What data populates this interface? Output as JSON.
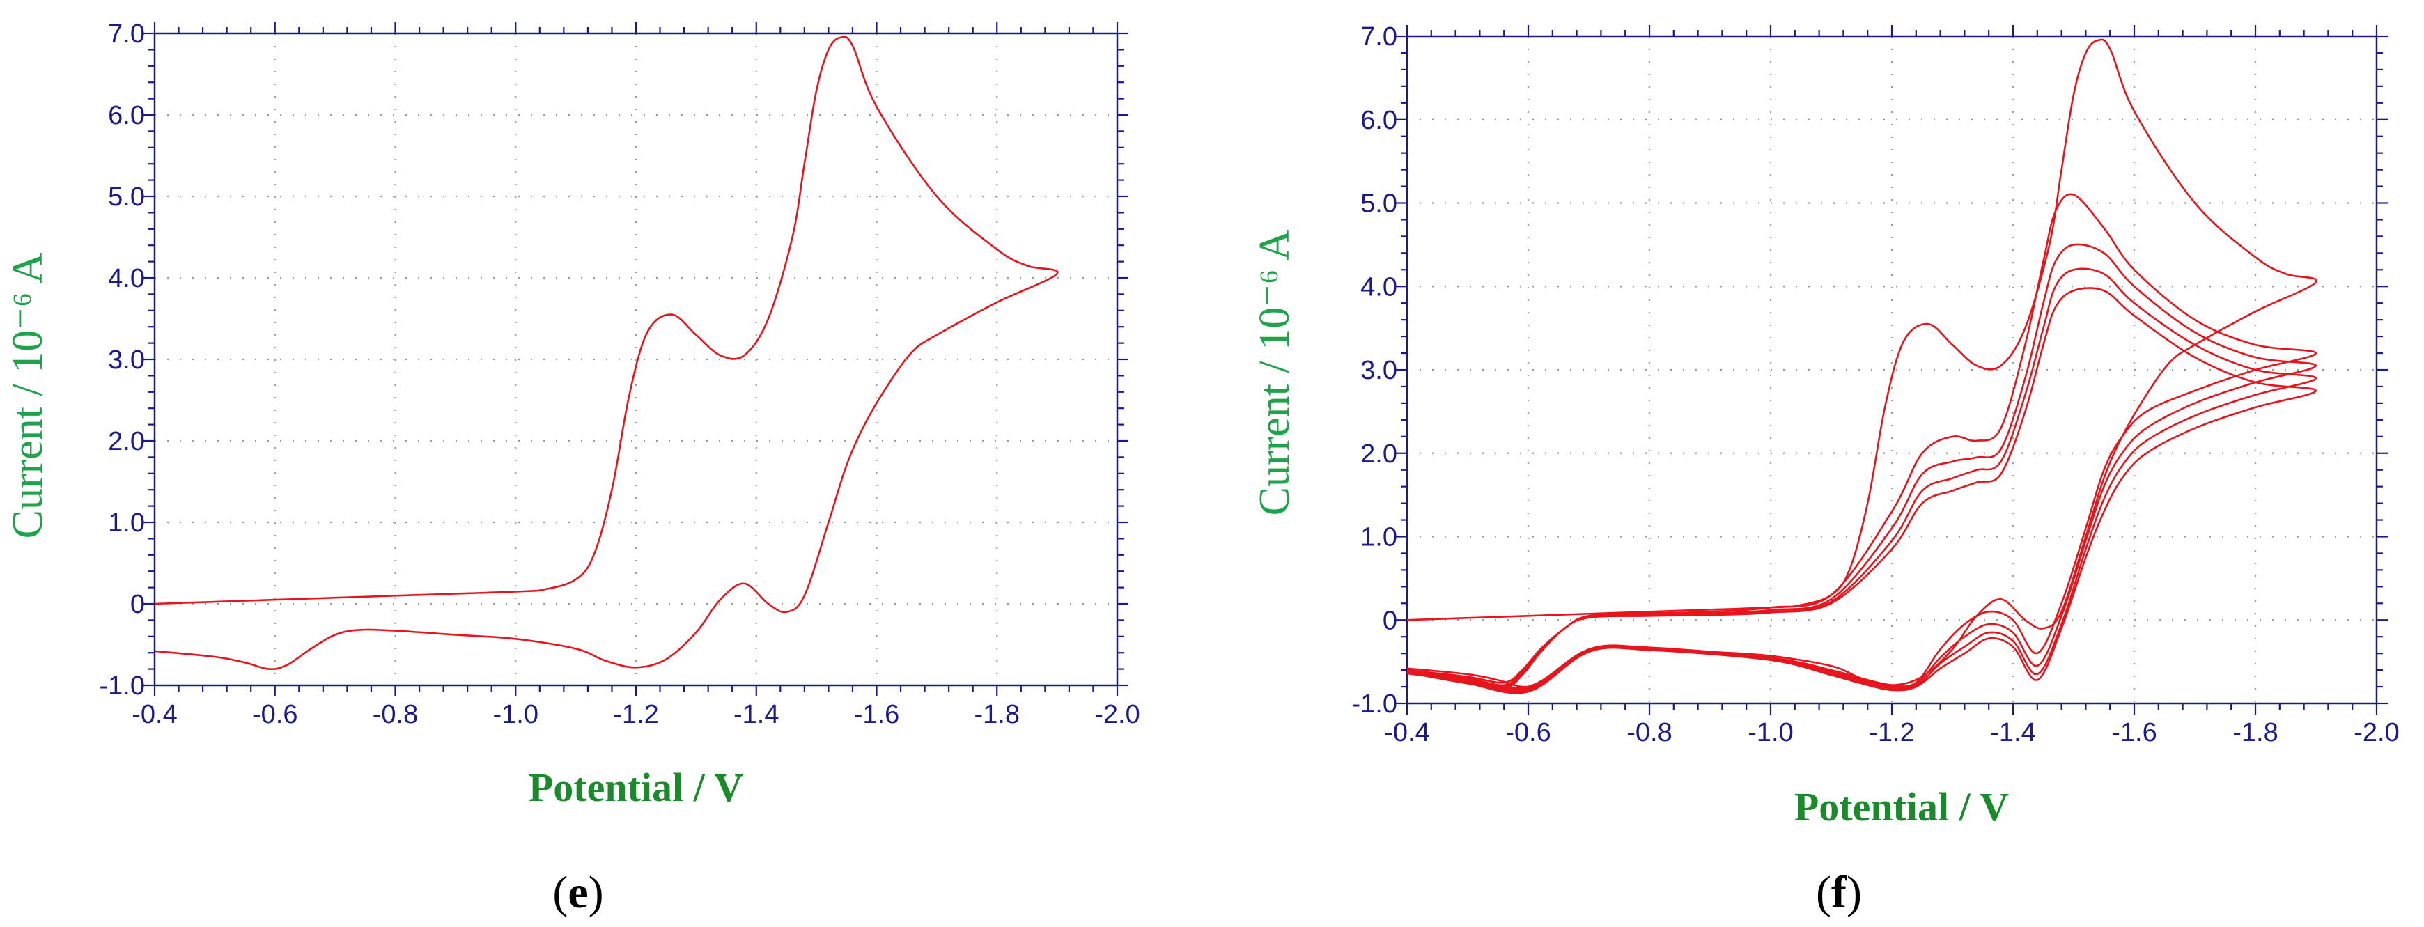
{
  "colors": {
    "axis": "#1a1a8c",
    "grid": "#9a9a9a",
    "curve": "#e8141c",
    "ylabel": "#1fa34a",
    "xlabel": "#1a8a2a",
    "panel_label": "#000000"
  },
  "chart_data": [
    {
      "type": "line",
      "panel_label": "(e)",
      "panel_letter": "e",
      "xlabel": "Potential / V",
      "ylabel": "Current / 10⁻⁶ A",
      "xlim": [
        -0.4,
        -2.0
      ],
      "ylim": [
        -1.0,
        7.0
      ],
      "x_reversed": true,
      "x_ticks": [
        "-0.4",
        "-0.6",
        "-0.8",
        "-1.0",
        "-1.2",
        "-1.4",
        "-1.6",
        "-1.8",
        "-2.0"
      ],
      "y_ticks": [
        "-1.0",
        "0",
        "1.0",
        "2.0",
        "3.0",
        "4.0",
        "5.0",
        "6.0",
        "7.0"
      ],
      "grid": true,
      "series": [
        {
          "x": [
            -0.4,
            -0.6,
            -0.8,
            -1.0,
            -1.05,
            -1.1,
            -1.13,
            -1.16,
            -1.19,
            -1.22,
            -1.26,
            -1.3,
            -1.34,
            -1.38,
            -1.42,
            -1.46,
            -1.48,
            -1.5,
            -1.52,
            -1.54,
            -1.56,
            -1.6,
            -1.7,
            -1.8,
            -1.85,
            -1.9,
            -1.8,
            -1.7,
            -1.66,
            -1.62,
            -1.58,
            -1.55,
            -1.52,
            -1.48,
            -1.45,
            -1.42,
            -1.38,
            -1.34,
            -1.3,
            -1.25,
            -1.2,
            -1.15,
            -1.1,
            -1.0,
            -0.9,
            -0.8,
            -0.74,
            -0.7,
            -0.66,
            -0.62,
            -0.59,
            -0.55,
            -0.5,
            -0.4
          ],
          "y": [
            0.0,
            0.05,
            0.1,
            0.15,
            0.18,
            0.3,
            0.6,
            1.4,
            2.6,
            3.35,
            3.55,
            3.3,
            3.05,
            3.05,
            3.5,
            4.5,
            5.4,
            6.3,
            6.8,
            6.95,
            6.85,
            6.1,
            5.0,
            4.35,
            4.15,
            4.05,
            3.7,
            3.3,
            3.1,
            2.7,
            2.2,
            1.7,
            1.0,
            0.1,
            -0.1,
            0.0,
            0.25,
            0.05,
            -0.35,
            -0.68,
            -0.78,
            -0.7,
            -0.55,
            -0.43,
            -0.38,
            -0.33,
            -0.32,
            -0.38,
            -0.55,
            -0.75,
            -0.8,
            -0.72,
            -0.65,
            -0.58
          ]
        }
      ]
    },
    {
      "type": "line",
      "panel_label": "(f)",
      "panel_letter": "f",
      "xlabel": "Potential / V",
      "ylabel": "Current / 10⁻⁶ A",
      "xlim": [
        -0.4,
        -2.0
      ],
      "ylim": [
        -1.0,
        7.0
      ],
      "x_reversed": true,
      "x_ticks": [
        "-0.4",
        "-0.6",
        "-0.8",
        "-1.0",
        "-1.2",
        "-1.4",
        "-1.6",
        "-1.8",
        "-2.0"
      ],
      "y_ticks": [
        "-1.0",
        "0",
        "1.0",
        "2.0",
        "3.0",
        "4.0",
        "5.0",
        "6.0",
        "7.0"
      ],
      "grid": true,
      "series": [
        {
          "x": [
            -0.4,
            -0.6,
            -0.8,
            -1.0,
            -1.05,
            -1.1,
            -1.13,
            -1.16,
            -1.19,
            -1.22,
            -1.26,
            -1.3,
            -1.34,
            -1.38,
            -1.42,
            -1.46,
            -1.48,
            -1.5,
            -1.52,
            -1.54,
            -1.56,
            -1.6,
            -1.7,
            -1.8,
            -1.85,
            -1.9,
            -1.8,
            -1.7,
            -1.66,
            -1.62,
            -1.58,
            -1.55,
            -1.52,
            -1.48,
            -1.45,
            -1.42,
            -1.38,
            -1.34,
            -1.3,
            -1.25,
            -1.2,
            -1.15,
            -1.1,
            -1.0,
            -0.9,
            -0.8,
            -0.74,
            -0.7,
            -0.66,
            -0.62,
            -0.59,
            -0.55,
            -0.5,
            -0.4
          ],
          "y": [
            0.0,
            0.05,
            0.1,
            0.15,
            0.18,
            0.3,
            0.6,
            1.4,
            2.6,
            3.35,
            3.55,
            3.3,
            3.05,
            3.05,
            3.5,
            4.5,
            5.4,
            6.3,
            6.8,
            6.95,
            6.85,
            6.1,
            5.0,
            4.35,
            4.15,
            4.05,
            3.7,
            3.3,
            3.1,
            2.7,
            2.2,
            1.7,
            1.0,
            0.1,
            -0.1,
            0.0,
            0.25,
            0.05,
            -0.35,
            -0.68,
            -0.78,
            -0.7,
            -0.55,
            -0.43,
            -0.38,
            -0.33,
            -0.32,
            -0.38,
            -0.55,
            -0.75,
            -0.8,
            -0.72,
            -0.65,
            -0.58
          ]
        },
        {
          "x": [
            -0.4,
            -0.5,
            -0.6,
            -0.7,
            -0.8,
            -1.0,
            -1.1,
            -1.15,
            -1.2,
            -1.24,
            -1.28,
            -1.32,
            -1.36,
            -1.4,
            -1.44,
            -1.48,
            -1.52,
            -1.55,
            -1.58,
            -1.62,
            -1.7,
            -1.8,
            -1.9,
            -1.8,
            -1.7,
            -1.6,
            -1.55,
            -1.5,
            -1.47,
            -1.45,
            -1.42,
            -1.38,
            -1.34,
            -1.3,
            -1.25,
            -1.2,
            -1.1,
            -1.0,
            -0.9,
            -0.8,
            -0.7,
            -0.66,
            -0.62,
            -0.59,
            -0.56,
            -0.5,
            -0.4
          ],
          "y": [
            -0.6,
            -0.7,
            -0.8,
            -0.35,
            -0.33,
            -0.45,
            -0.6,
            -0.7,
            -0.78,
            -0.75,
            -0.35,
            -0.05,
            0.1,
            0.0,
            -0.4,
            0.2,
            1.1,
            1.8,
            2.2,
            2.5,
            2.75,
            3.0,
            3.2,
            3.3,
            3.6,
            4.2,
            4.7,
            5.1,
            4.9,
            4.3,
            3.3,
            2.3,
            2.15,
            2.2,
            2.0,
            1.3,
            0.3,
            0.15,
            0.1,
            0.08,
            0.05,
            -0.1,
            -0.35,
            -0.6,
            -0.75,
            -0.68,
            -0.6
          ]
        },
        {
          "x": [
            -0.4,
            -0.5,
            -0.6,
            -0.7,
            -0.8,
            -1.0,
            -1.1,
            -1.15,
            -1.2,
            -1.24,
            -1.28,
            -1.32,
            -1.36,
            -1.4,
            -1.44,
            -1.48,
            -1.52,
            -1.55,
            -1.58,
            -1.62,
            -1.7,
            -1.8,
            -1.9,
            -1.8,
            -1.7,
            -1.6,
            -1.55,
            -1.5,
            -1.47,
            -1.45,
            -1.42,
            -1.38,
            -1.34,
            -1.3,
            -1.25,
            -1.2,
            -1.1,
            -1.0,
            -0.9,
            -0.8,
            -0.7,
            -0.66,
            -0.62,
            -0.59,
            -0.56,
            -0.5,
            -0.4
          ],
          "y": [
            -0.6,
            -0.72,
            -0.82,
            -0.36,
            -0.34,
            -0.46,
            -0.62,
            -0.72,
            -0.8,
            -0.77,
            -0.45,
            -0.2,
            -0.05,
            -0.15,
            -0.55,
            0.05,
            0.95,
            1.6,
            2.0,
            2.3,
            2.6,
            2.85,
            3.05,
            3.15,
            3.45,
            4.0,
            4.4,
            4.5,
            4.3,
            3.8,
            2.9,
            2.05,
            1.95,
            1.9,
            1.75,
            1.1,
            0.25,
            0.12,
            0.08,
            0.06,
            0.04,
            -0.1,
            -0.37,
            -0.62,
            -0.78,
            -0.7,
            -0.62
          ]
        },
        {
          "x": [
            -0.4,
            -0.5,
            -0.6,
            -0.7,
            -0.8,
            -1.0,
            -1.1,
            -1.15,
            -1.2,
            -1.24,
            -1.28,
            -1.32,
            -1.36,
            -1.4,
            -1.44,
            -1.48,
            -1.52,
            -1.55,
            -1.58,
            -1.62,
            -1.7,
            -1.8,
            -1.9,
            -1.8,
            -1.7,
            -1.6,
            -1.55,
            -1.5,
            -1.47,
            -1.45,
            -1.42,
            -1.38,
            -1.34,
            -1.3,
            -1.25,
            -1.2,
            -1.1,
            -1.0,
            -0.9,
            -0.8,
            -0.7,
            -0.66,
            -0.62,
            -0.59,
            -0.56,
            -0.5,
            -0.4
          ],
          "y": [
            -0.62,
            -0.74,
            -0.84,
            -0.37,
            -0.35,
            -0.47,
            -0.64,
            -0.74,
            -0.82,
            -0.79,
            -0.52,
            -0.32,
            -0.15,
            -0.25,
            -0.65,
            -0.05,
            0.85,
            1.45,
            1.85,
            2.15,
            2.45,
            2.7,
            2.9,
            3.0,
            3.3,
            3.8,
            4.15,
            4.2,
            4.0,
            3.5,
            2.7,
            1.9,
            1.8,
            1.7,
            1.55,
            0.95,
            0.22,
            0.1,
            0.07,
            0.05,
            0.03,
            -0.1,
            -0.38,
            -0.64,
            -0.8,
            -0.72,
            -0.63
          ]
        },
        {
          "x": [
            -0.4,
            -0.5,
            -0.6,
            -0.7,
            -0.8,
            -1.0,
            -1.1,
            -1.15,
            -1.2,
            -1.24,
            -1.28,
            -1.32,
            -1.36,
            -1.4,
            -1.44,
            -1.48,
            -1.52,
            -1.55,
            -1.58,
            -1.62,
            -1.7,
            -1.8,
            -1.9,
            -1.8,
            -1.7,
            -1.6,
            -1.55,
            -1.5,
            -1.47,
            -1.45,
            -1.42,
            -1.38,
            -1.34,
            -1.3,
            -1.25,
            -1.2,
            -1.1,
            -1.0,
            -0.9,
            -0.8,
            -0.7,
            -0.66,
            -0.62,
            -0.59,
            -0.56,
            -0.5,
            -0.4
          ],
          "y": [
            -0.63,
            -0.76,
            -0.86,
            -0.38,
            -0.36,
            -0.48,
            -0.66,
            -0.76,
            -0.84,
            -0.8,
            -0.58,
            -0.4,
            -0.22,
            -0.32,
            -0.72,
            -0.1,
            0.75,
            1.3,
            1.7,
            2.0,
            2.3,
            2.55,
            2.75,
            2.85,
            3.15,
            3.65,
            3.95,
            3.95,
            3.75,
            3.3,
            2.5,
            1.75,
            1.65,
            1.55,
            1.4,
            0.85,
            0.2,
            0.09,
            0.06,
            0.05,
            0.03,
            -0.1,
            -0.39,
            -0.66,
            -0.82,
            -0.74,
            -0.64
          ]
        }
      ]
    }
  ]
}
